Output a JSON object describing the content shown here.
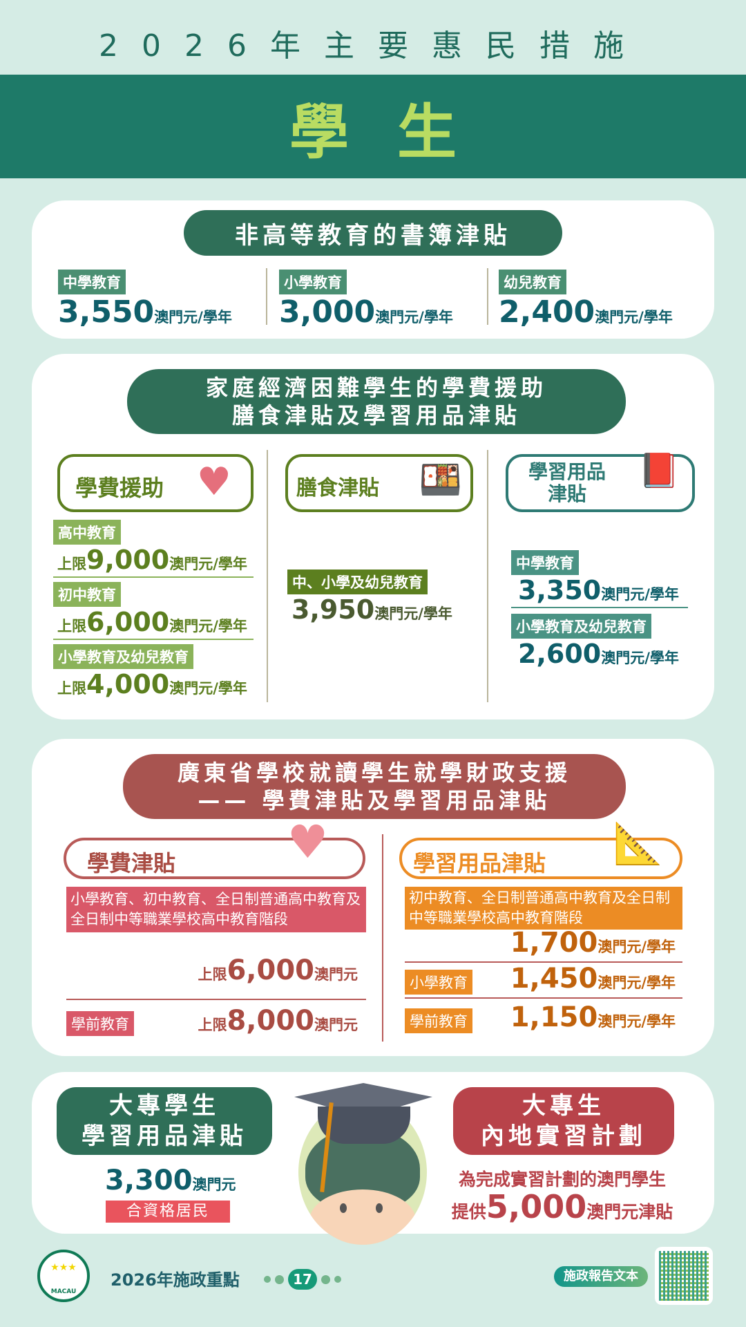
{
  "header": {
    "title": "2026年主要惠民措施",
    "banner": "學生"
  },
  "books": {
    "title": "非高等教育的書簿津貼",
    "unit": "澳門元/學年",
    "items": [
      {
        "label": "中學教育",
        "value": "3,550"
      },
      {
        "label": "小學教育",
        "value": "3,000"
      },
      {
        "label": "幼兒教育",
        "value": "2,400"
      }
    ]
  },
  "needy": {
    "title_l1": "家庭經濟困難學生的學費援助",
    "title_l2": "膳食津貼及學習用品津貼",
    "unit": "澳門元/學年",
    "prefix": "上限",
    "tuition": {
      "title": "學費援助",
      "icon": "heart-icon",
      "items": [
        {
          "label": "高中教育",
          "value": "9,000"
        },
        {
          "label": "初中教育",
          "value": "6,000"
        },
        {
          "label": "小學教育及幼兒教育",
          "value": "4,000"
        }
      ]
    },
    "meal": {
      "title": "膳食津貼",
      "icon": "lunch-icon",
      "items": [
        {
          "label": "中、小學及幼兒教育",
          "value": "3,950"
        }
      ]
    },
    "supplies": {
      "title_l1": "學習用品",
      "title_l2": "津貼",
      "icon": "book-pencil-icon",
      "items": [
        {
          "label": "中學教育",
          "value": "3,350"
        },
        {
          "label": "小學教育及幼兒教育",
          "value": "2,600"
        }
      ]
    }
  },
  "gd": {
    "title_l1": "廣東省學校就讀學生就學財政支援",
    "title_l2": "—— 學費津貼及學習用品津貼",
    "prefix": "上限",
    "unit_short": "澳門元",
    "unit": "澳門元/學年",
    "tuition": {
      "title": "學費津貼",
      "icon": "heart-icon",
      "items": [
        {
          "label": "小學教育、初中教育、全日制普通高中教育及全日制中等職業學校高中教育階段",
          "value": "6,000"
        },
        {
          "label": "學前教育",
          "value": "8,000"
        }
      ]
    },
    "supplies": {
      "title": "學習用品津貼",
      "icon": "compass-pencil-icon",
      "items": [
        {
          "label": "初中教育、全日制普通高中教育及全日制中等職業學校高中教育階段",
          "value": "1,700"
        },
        {
          "label": "小學教育",
          "value": "1,450"
        },
        {
          "label": "學前教育",
          "value": "1,150"
        }
      ]
    }
  },
  "tertiary": {
    "left_l1": "大專學生",
    "left_l2": "學習用品津貼",
    "left_value": "3,300",
    "left_unit": "澳門元",
    "left_badge": "合資格居民",
    "right_l1": "大專生",
    "right_l2": "內地實習計劃",
    "right_text": "為完成實習計劃的澳門學生",
    "right_prefix": "提供",
    "right_value": "5,000",
    "right_unit": "澳門元津貼"
  },
  "footer": {
    "logo_text": "MACAU",
    "label": "2026年施政重點",
    "page": "17",
    "report_button": "施政報告文本"
  },
  "colors": {
    "dark_green": "#2f6f58",
    "teal": "#1e7a68",
    "olive": "#5c7f1f",
    "red": "#a85450",
    "orange": "#ec8c24",
    "navy_teal": "#0f5e6a"
  }
}
